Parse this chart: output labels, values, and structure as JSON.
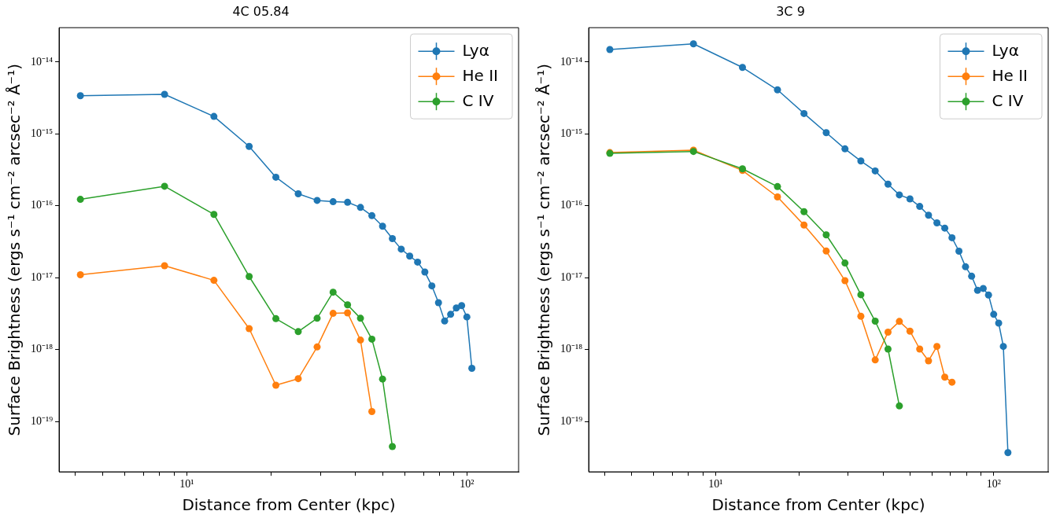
{
  "chart_data": [
    {
      "type": "line",
      "title": "4C 05.84",
      "xlabel": "Distance from Center (kpc)",
      "ylabel": "Surface Brightness (ergs s⁻¹ cm⁻² arcsec⁻² Å⁻¹)",
      "log": "xy",
      "xlim": [
        3.5,
        153
      ],
      "ylim": [
        2e-20,
        3e-14
      ],
      "xticks": [
        {
          "value": 4,
          "label": null
        },
        {
          "value": 5,
          "label": null
        },
        {
          "value": 6,
          "label": null
        },
        {
          "value": 7,
          "label": null
        },
        {
          "value": 8,
          "label": null
        },
        {
          "value": 9,
          "label": null
        },
        {
          "value": 10,
          "label": "10¹"
        },
        {
          "value": 20,
          "label": null
        },
        {
          "value": 30,
          "label": null
        },
        {
          "value": 40,
          "label": null
        },
        {
          "value": 50,
          "label": null
        },
        {
          "value": 60,
          "label": null
        },
        {
          "value": 70,
          "label": null
        },
        {
          "value": 80,
          "label": null
        },
        {
          "value": 90,
          "label": null
        },
        {
          "value": 100,
          "label": "10²"
        }
      ],
      "yticks": [
        {
          "value": 1e-19,
          "label": "10⁻¹⁹"
        },
        {
          "value": 1e-18,
          "label": "10⁻¹⁸"
        },
        {
          "value": 1e-17,
          "label": "10⁻¹⁷"
        },
        {
          "value": 1e-16,
          "label": "10⁻¹⁶"
        },
        {
          "value": 1e-15,
          "label": "10⁻¹⁵"
        },
        {
          "value": 1e-14,
          "label": "10⁻¹⁴"
        }
      ],
      "grid": false,
      "legend": "top right",
      "marker": "circle",
      "line_style": "solid",
      "series": [
        {
          "name": "Lyα",
          "color": "#1f77b4",
          "x": [
            4.17,
            8.33,
            12.5,
            16.7,
            20.8,
            25.0,
            29.2,
            33.3,
            37.5,
            41.7,
            45.8,
            50.0,
            54.2,
            58.3,
            62.5,
            66.7,
            70.8,
            75.0,
            79.2,
            83.3,
            87.5,
            91.7,
            95.8,
            100.0,
            104.2
          ],
          "values": [
            3.4e-15,
            3.55e-15,
            1.75e-15,
            6.7e-16,
            2.5e-16,
            1.47e-16,
            1.19e-16,
            1.14e-16,
            1.12e-16,
            9.5e-17,
            7.3e-17,
            5.2e-17,
            3.5e-17,
            2.5e-17,
            2e-17,
            1.65e-17,
            1.2e-17,
            7.7e-18,
            4.5e-18,
            2.5e-18,
            3.1e-18,
            3.8e-18,
            4.1e-18,
            2.85e-18,
            5.5e-19
          ]
        },
        {
          "name": "He II",
          "color": "#ff7f0e",
          "x": [
            4.17,
            8.33,
            12.5,
            16.7,
            20.8,
            25.0,
            29.2,
            33.3,
            37.5,
            41.7,
            45.8
          ],
          "values": [
            1.1e-17,
            1.47e-17,
            9.2e-18,
            1.96e-18,
            3.2e-19,
            3.95e-19,
            1.09e-18,
            3.2e-18,
            3.25e-18,
            1.36e-18,
            1.38e-19
          ]
        },
        {
          "name": "C IV",
          "color": "#2ca02c",
          "x": [
            4.17,
            8.33,
            12.5,
            16.7,
            20.8,
            25.0,
            29.2,
            33.3,
            37.5,
            41.7,
            45.8,
            50.0,
            54.2
          ],
          "values": [
            1.23e-16,
            1.87e-16,
            7.6e-17,
            1.04e-17,
            2.7e-18,
            1.78e-18,
            2.73e-18,
            6.3e-18,
            4.2e-18,
            2.73e-18,
            1.4e-18,
            3.9e-19,
            4.5e-20
          ]
        }
      ]
    },
    {
      "type": "line",
      "title": "3C 9",
      "xlabel": "Distance from Center (kpc)",
      "ylabel": "Surface Brightness (ergs s⁻¹ cm⁻² arcsec⁻² Å⁻¹)",
      "log": "xy",
      "xlim": [
        3.5,
        157
      ],
      "ylim": [
        2e-20,
        3e-14
      ],
      "xticks": [
        {
          "value": 4,
          "label": null
        },
        {
          "value": 5,
          "label": null
        },
        {
          "value": 6,
          "label": null
        },
        {
          "value": 7,
          "label": null
        },
        {
          "value": 8,
          "label": null
        },
        {
          "value": 9,
          "label": null
        },
        {
          "value": 10,
          "label": "10¹"
        },
        {
          "value": 20,
          "label": null
        },
        {
          "value": 30,
          "label": null
        },
        {
          "value": 40,
          "label": null
        },
        {
          "value": 50,
          "label": null
        },
        {
          "value": 60,
          "label": null
        },
        {
          "value": 70,
          "label": null
        },
        {
          "value": 80,
          "label": null
        },
        {
          "value": 90,
          "label": null
        },
        {
          "value": 100,
          "label": "10²"
        }
      ],
      "yticks": [
        {
          "value": 1e-19,
          "label": "10⁻¹⁹"
        },
        {
          "value": 1e-18,
          "label": "10⁻¹⁸"
        },
        {
          "value": 1e-17,
          "label": "10⁻¹⁷"
        },
        {
          "value": 1e-16,
          "label": "10⁻¹⁶"
        },
        {
          "value": 1e-15,
          "label": "10⁻¹⁵"
        },
        {
          "value": 1e-14,
          "label": "10⁻¹⁴"
        }
      ],
      "grid": false,
      "legend": "top right",
      "marker": "circle",
      "line_style": "solid",
      "series": [
        {
          "name": "Lyα",
          "color": "#1f77b4",
          "x": [
            4.17,
            8.33,
            12.5,
            16.7,
            20.8,
            25.0,
            29.2,
            33.3,
            37.5,
            41.7,
            45.8,
            50.0,
            54.2,
            58.3,
            62.5,
            66.7,
            70.8,
            75.0,
            79.2,
            83.3,
            87.5,
            91.7,
            95.8,
            100.0,
            104.2,
            108.3,
            112.5
          ],
          "values": [
            1.49e-14,
            1.79e-14,
            8.4e-15,
            4.1e-15,
            1.92e-15,
            1.04e-15,
            6.2e-16,
            4.2e-16,
            3.06e-16,
            2e-16,
            1.42e-16,
            1.25e-16,
            9.8e-17,
            7.4e-17,
            5.8e-17,
            4.9e-17,
            3.6e-17,
            2.34e-17,
            1.42e-17,
            1.05e-17,
            6.7e-18,
            7.1e-18,
            5.75e-18,
            3.1e-18,
            2.34e-18,
            1.11e-18,
            3.7e-20
          ]
        },
        {
          "name": "He II",
          "color": "#ff7f0e",
          "x": [
            4.17,
            8.33,
            12.5,
            16.7,
            20.8,
            25.0,
            29.2,
            33.3,
            37.5,
            41.7,
            45.8,
            50.0,
            54.2,
            58.3,
            62.5,
            66.7,
            70.8
          ],
          "values": [
            5.5e-16,
            5.95e-16,
            3.1e-16,
            1.33e-16,
            5.4e-17,
            2.35e-17,
            9.1e-18,
            2.92e-18,
            7.2e-19,
            1.75e-18,
            2.47e-18,
            1.81e-18,
            1.02e-18,
            7e-19,
            1.11e-18,
            4.15e-19,
            3.53e-19
          ]
        },
        {
          "name": "C IV",
          "color": "#2ca02c",
          "x": [
            4.17,
            8.33,
            12.5,
            16.7,
            20.8,
            25.0,
            29.2,
            33.3,
            37.5,
            41.7,
            45.8
          ],
          "values": [
            5.36e-16,
            5.7e-16,
            3.27e-16,
            1.85e-16,
            8.3e-17,
            3.95e-17,
            1.6e-17,
            5.8e-18,
            2.49e-18,
            1.02e-18,
            1.65e-19
          ]
        }
      ]
    }
  ]
}
